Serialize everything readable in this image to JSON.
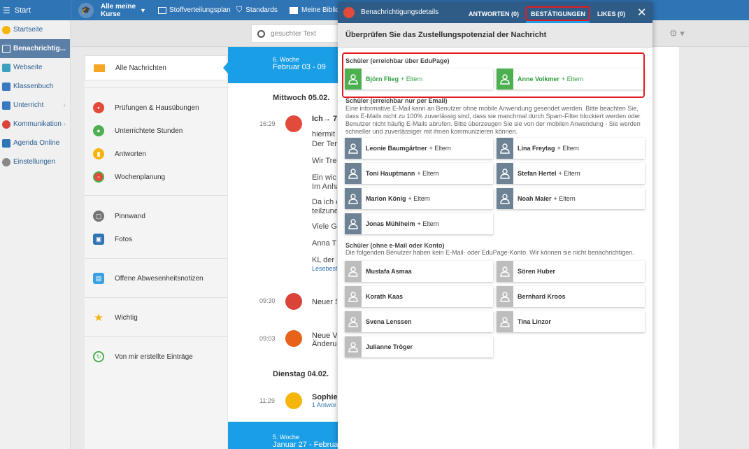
{
  "topbar": {
    "start": "Start",
    "courses_line1": "Alle meine",
    "courses_line2": "Kurse",
    "stoff": "Stoffverteilungsplan",
    "standards": "Standards",
    "biblio": "Meine Biblio"
  },
  "sidebar": {
    "items": [
      {
        "label": "Startseite",
        "color": "#f5b50a"
      },
      {
        "label": "Benachrichtig...",
        "color": "#ffffff"
      },
      {
        "label": "Webseite",
        "color": "#3aa0c0"
      },
      {
        "label": "Klassenbuch",
        "color": "#3a78c0"
      },
      {
        "label": "Unterricht",
        "color": "#3a78c0"
      },
      {
        "label": "Kommunikation",
        "color": "#d9433a"
      },
      {
        "label": "Agenda Online",
        "color": "#2f74b4"
      },
      {
        "label": "Einstellungen",
        "color": "#888888"
      }
    ]
  },
  "search": {
    "placeholder": "gesuchter Text"
  },
  "leftnav": {
    "all": "Alle Nachrichten",
    "pruefungen": "Prüfungen & Hausübungen",
    "stunden": "Unterrichtete Stunden",
    "antworten": "Antworten",
    "wochen": "Wochenplanung",
    "pinnwand": "Pinnwand",
    "fotos": "Fotos",
    "abwesenheit": "Offene Abwesenheitsnotizen",
    "wichtig": "Wichtig",
    "eigene": "Von mir erstellte Einträge"
  },
  "timeline": {
    "week1_label": "6. Woche",
    "week1_range": "Februar 03 - 09",
    "day1": "Mittwoch 05.02.",
    "t1": "16:29",
    "msg1_title": "Ich→ 7",
    "msg1_lines": [
      "hiermit",
      "Der Ter",
      "Wir Tre",
      "Ein wic",
      "Im Anha",
      "Da ich e",
      "teilzune",
      "Viele G",
      "Anna T",
      "KL der"
    ],
    "msg1_link": "Lesebest",
    "t2": "09:30",
    "msg2": "Neuer S",
    "t3": "09:03",
    "msg3a": "Neue V",
    "msg3b": "Änderu",
    "day2": "Dienstag 04.02.",
    "t4": "11:29",
    "msg4": "Sophie",
    "msg4_link": "1 Antwor",
    "week2_label": "5. Woche",
    "week2_range": "Januar 27 - Februa"
  },
  "modal": {
    "title": "Benachrichtigungsdetails",
    "tabs": {
      "antworten": "ANTWORTEN (0)",
      "bestaetigungen": "BESTÄTIGUNGEN",
      "likes": "LIKES (0)"
    },
    "subtitle": "Überprüfen Sie das Zustellungspotenzial der Nachricht",
    "eltern": "+ Eltern",
    "sec1_title": "Schüler (erreichbar über EduPage)",
    "sec1": [
      "Björn Flieg",
      "Anne Volkmer"
    ],
    "sec2_title": "Schüler (erreichbar nur per Email)",
    "sec2_desc": "Eine informative E-Mail kann an Benutzer ohne mobile Anwendung gesendet werden. Bitte beachten Sie, dass E-Mails nicht zu 100% zuverlässig sind, dass sie manchmal durch Spam-Filter blockiert werden oder Benutzer nicht häufig E-Mails abrufen. Bitte überzeugen Sie sie von der mobilen Anwendung - Sie werden schneller und zuverlässiger mit ihnen kommunizieren können.",
    "sec2": [
      "Leonie Baumgärtner",
      "Lina Freytag",
      "Toni Hauptmann",
      "Stefan Hertel",
      "Marion König",
      "Noah Maler",
      "Jonas Mühlheim"
    ],
    "sec3_title": "Schüler (ohne e-Mail oder Konto)",
    "sec3_desc": "Die folgenden Benutzer haben kein E-Mail- oder EduPage-Konto. Wir können sie nicht benachrichtigen.",
    "sec3": [
      "Mustafa Asmaa",
      "Sören Huber",
      "Korath Kaas",
      "Bernhard Kroos",
      "Svena Lenssen",
      "Tina Linzor",
      "Julianne Tröger"
    ]
  }
}
